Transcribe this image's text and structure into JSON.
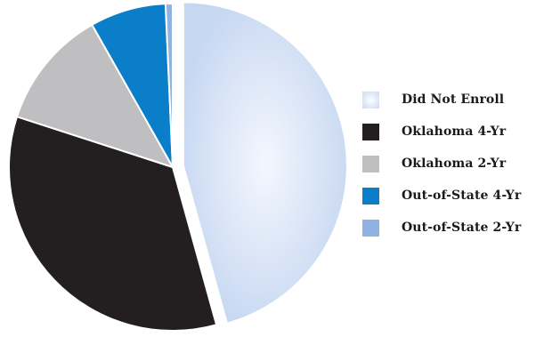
{
  "chart_data": {
    "type": "pie",
    "title": "",
    "categories": [
      "Did Not Enroll",
      "Oklahoma 4-Yr",
      "Oklahoma 2-Yr",
      "Out-of-State 4-Yr",
      "Out-of-State 2-Yr"
    ],
    "values": [
      45.7,
      34.3,
      11.8,
      7.5,
      0.7
    ],
    "unit": "percent",
    "colors": [
      "#c9d9f3",
      "#231f20",
      "#bfbfc1",
      "#0a7ec9",
      "#8fb2e2"
    ],
    "exploded": [
      "Did Not Enroll"
    ],
    "legend_position": "right"
  },
  "legend": {
    "items": [
      {
        "label": "Did Not Enroll",
        "color": "#c9d9f3"
      },
      {
        "label": "Oklahoma 4-Yr",
        "color": "#231f20"
      },
      {
        "label": "Oklahoma 2-Yr",
        "color": "#bfbfc1"
      },
      {
        "label": "Out-of-State 4-Yr",
        "color": "#0a7ec9"
      },
      {
        "label": "Out-of-State 2-Yr",
        "color": "#8fb2e2"
      }
    ]
  }
}
